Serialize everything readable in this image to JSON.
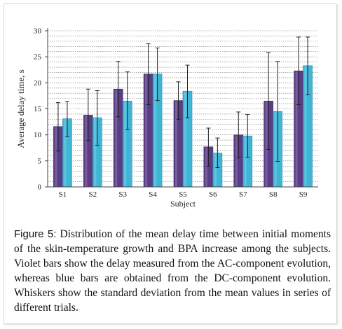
{
  "chart_data": {
    "type": "bar",
    "categories": [
      "S1",
      "S2",
      "S3",
      "S4",
      "S5",
      "S6",
      "S7",
      "S8",
      "S9"
    ],
    "series": [
      {
        "color": "#5b3d87",
        "values": [
          11.6,
          13.8,
          18.8,
          21.7,
          16.6,
          7.7,
          10.0,
          16.5,
          22.3
        ],
        "error_low": [
          6.9,
          8.9,
          13.5,
          15.8,
          13.0,
          4.0,
          5.6,
          7.2,
          15.8
        ],
        "error_high": [
          16.2,
          18.8,
          24.1,
          27.5,
          20.2,
          11.3,
          14.4,
          25.8,
          28.8
        ]
      },
      {
        "color": "#3fb6d6",
        "values": [
          13.1,
          13.3,
          16.5,
          21.7,
          18.4,
          6.5,
          9.8,
          14.5,
          23.3
        ],
        "error_low": [
          9.7,
          8.0,
          11.0,
          16.6,
          13.3,
          3.7,
          5.7,
          4.9,
          17.7
        ],
        "error_high": [
          16.4,
          18.5,
          22.1,
          26.7,
          23.4,
          9.4,
          13.9,
          24.1,
          28.8
        ]
      }
    ],
    "ylabel": "Average delay time, s",
    "xlabel": "Subject",
    "ylim": [
      0,
      30
    ],
    "yticks": [
      0,
      5,
      10,
      15,
      20,
      25,
      30
    ],
    "grid": true
  },
  "caption": {
    "label": "Figure 5:",
    "text": " Distribution of the mean delay time between initial moments of the skin-temperature growth and BPA increase among the subjects. Violet bars show the delay measured from the AC-component evolution, whereas blue bars are obtained from the DC-component evolution. Whiskers show the standard deviation from the mean values in series of different trials."
  }
}
